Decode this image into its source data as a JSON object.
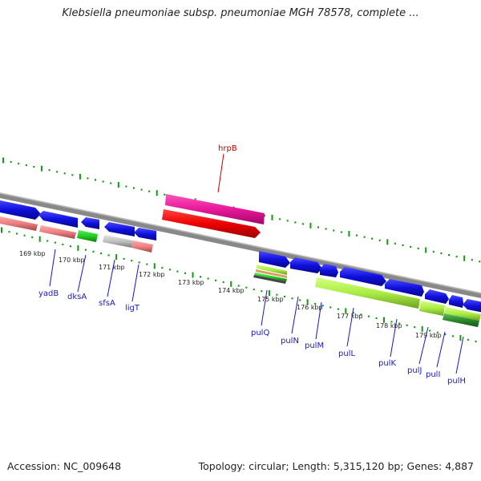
{
  "title": "Klebsiella pneumoniae subsp. pneumoniae MGH 78578, complete ...",
  "footer": {
    "accession": "Accession: NC_009648",
    "summary": "Topology: circular; Length: 5,315,120 bp; Genes: 4,887"
  },
  "ticks": [
    "169 kbp",
    "170 kbp",
    "171 kbp",
    "172 kbp",
    "173 kbp",
    "174 kbp",
    "175 kbp",
    "176 kbp",
    "177 kbp",
    "178 kbp",
    "179 kbp"
  ],
  "labels": {
    "top": [
      "hrpB"
    ],
    "bottom": [
      "yadB",
      "dksA",
      "sfsA",
      "ligT",
      "pulQ",
      "pulN",
      "pulM",
      "pulL",
      "pulK",
      "pulJ",
      "pulI",
      "pulH"
    ]
  },
  "colors": {
    "forward_gene": "#1010dd",
    "hrpB_feature": "#e8189a",
    "red_feature": "#ee0000",
    "salmon_feature": "#ee8080",
    "green_feature": "#22cc22",
    "gray_feature": "#c0c0c0",
    "lime_feature": "#aaee44",
    "backbone": "#888888",
    "tick_marks": "#119911",
    "label_text": "#1a1ab8",
    "hrp_text": "#c00000"
  }
}
